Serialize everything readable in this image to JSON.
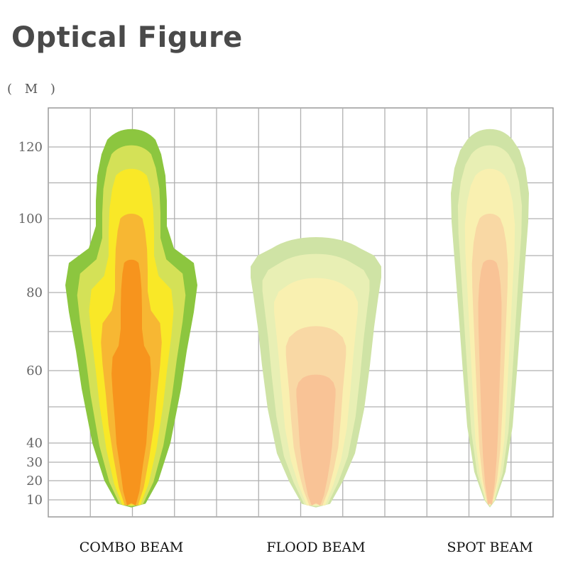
{
  "header": {
    "title": "Optical Figure",
    "unit_label": "( M )"
  },
  "chart_data": {
    "type": "area",
    "title": "Optical Figure",
    "ylabel": "( M )",
    "ylim": [
      0,
      130
    ],
    "yticks": [
      "10",
      "20",
      "30",
      "40",
      "60",
      "80",
      "100",
      "120"
    ],
    "grid": true,
    "categories": [
      "COMBO BEAM",
      "FLOOD BEAM",
      "SPOT BEAM"
    ],
    "series": [
      {
        "category": "COMBO BEAM",
        "max_distance": 125,
        "colors": [
          "#8cc63f",
          "#d4e157",
          "#f9e827",
          "#f7b733",
          "#f7941d"
        ]
      },
      {
        "category": "FLOOD BEAM",
        "max_distance": 95,
        "colors": [
          "#cfe3a5",
          "#e8efb4",
          "#f9f0b0",
          "#f9d8a4",
          "#f9c396"
        ]
      },
      {
        "category": "SPOT BEAM",
        "max_distance": 125,
        "colors": [
          "#cfe3a5",
          "#e8efb4",
          "#f9f0b0",
          "#f9d8a4",
          "#f9c396"
        ]
      }
    ]
  }
}
